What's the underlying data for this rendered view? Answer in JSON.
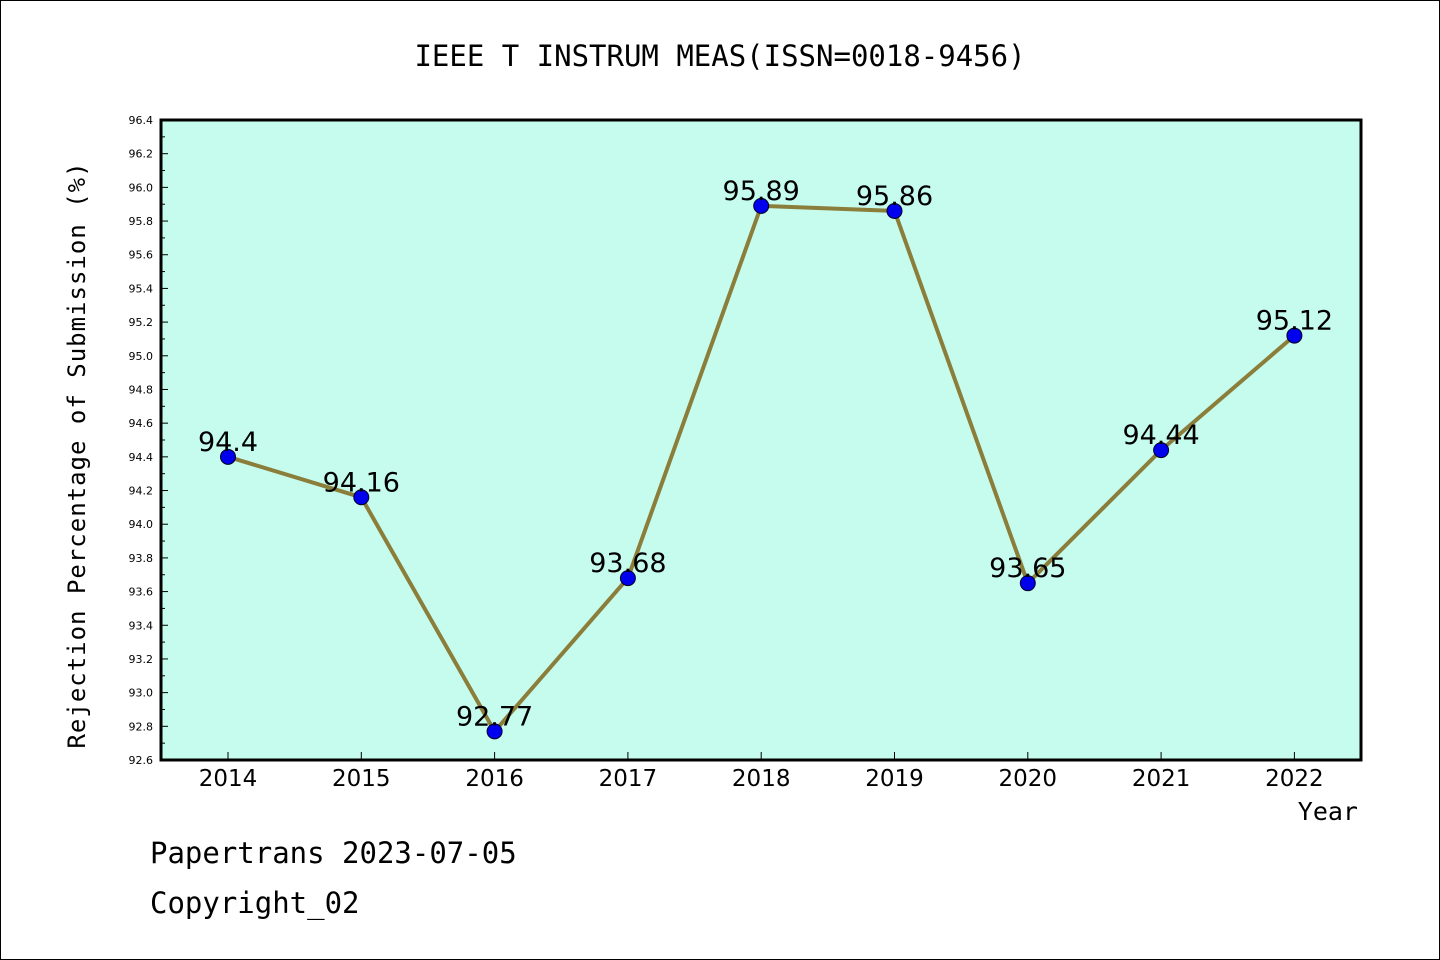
{
  "chart_data": {
    "type": "line",
    "title": "IEEE T INSTRUM MEAS(ISSN=0018-9456)",
    "xlabel": "Year",
    "ylabel": "Rejection Percentage of Submission (%)",
    "categories": [
      "2014",
      "2015",
      "2016",
      "2017",
      "2018",
      "2019",
      "2020",
      "2021",
      "2022"
    ],
    "values": [
      94.4,
      94.16,
      92.77,
      93.68,
      95.89,
      95.86,
      93.65,
      94.44,
      95.12
    ],
    "data_labels": [
      "94.4",
      "94.16",
      "92.77",
      "93.68",
      "95.89",
      "95.86",
      "93.65",
      "94.44",
      "95.12"
    ],
    "ylim": [
      92.6,
      96.4
    ],
    "yticks": [
      "92.6",
      "92.8",
      "93.0",
      "93.2",
      "93.4",
      "93.6",
      "93.8",
      "94.0",
      "94.2",
      "94.4",
      "94.6",
      "94.8",
      "95.0",
      "95.2",
      "95.4",
      "95.6",
      "95.8",
      "96.0",
      "96.2",
      "96.4"
    ],
    "grid": false,
    "colors": {
      "plot_background": "#c6fcee",
      "line": "#8b7d3a",
      "marker": "#0000ee"
    }
  },
  "footer": {
    "line1": "Papertrans 2023-07-05",
    "line2": "Copyright_02"
  }
}
